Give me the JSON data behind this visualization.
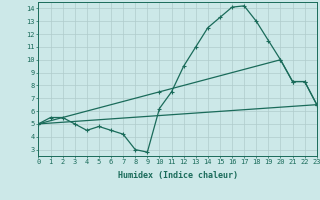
{
  "line1_x": [
    0,
    1,
    2,
    3,
    4,
    5,
    6,
    7,
    8,
    9,
    10,
    11,
    12,
    13,
    14,
    15,
    16,
    17,
    18,
    19,
    20,
    21,
    22,
    23
  ],
  "line1_y": [
    5.0,
    5.5,
    5.5,
    5.0,
    4.5,
    4.8,
    4.5,
    4.2,
    3.0,
    2.8,
    6.2,
    7.5,
    9.5,
    11.0,
    12.5,
    13.3,
    14.1,
    14.2,
    13.0,
    11.5,
    10.0,
    8.3,
    8.3,
    6.5
  ],
  "line2_x": [
    0,
    10,
    20,
    21,
    22,
    23
  ],
  "line2_y": [
    5.0,
    7.5,
    10.0,
    8.3,
    8.3,
    6.5
  ],
  "line3_x": [
    0,
    23
  ],
  "line3_y": [
    5.0,
    6.5
  ],
  "line_color": "#1a6b5a",
  "bg_color": "#cce8e8",
  "grid_color": "#b0cccc",
  "xlabel": "Humidex (Indice chaleur)",
  "xlim": [
    0,
    23
  ],
  "ylim": [
    2.5,
    14.5
  ],
  "yticks": [
    3,
    4,
    5,
    6,
    7,
    8,
    9,
    10,
    11,
    12,
    13,
    14
  ],
  "xticks": [
    0,
    1,
    2,
    3,
    4,
    5,
    6,
    7,
    8,
    9,
    10,
    11,
    12,
    13,
    14,
    15,
    16,
    17,
    18,
    19,
    20,
    21,
    22,
    23
  ],
  "xlabel_fontsize": 6,
  "tick_fontsize": 5
}
